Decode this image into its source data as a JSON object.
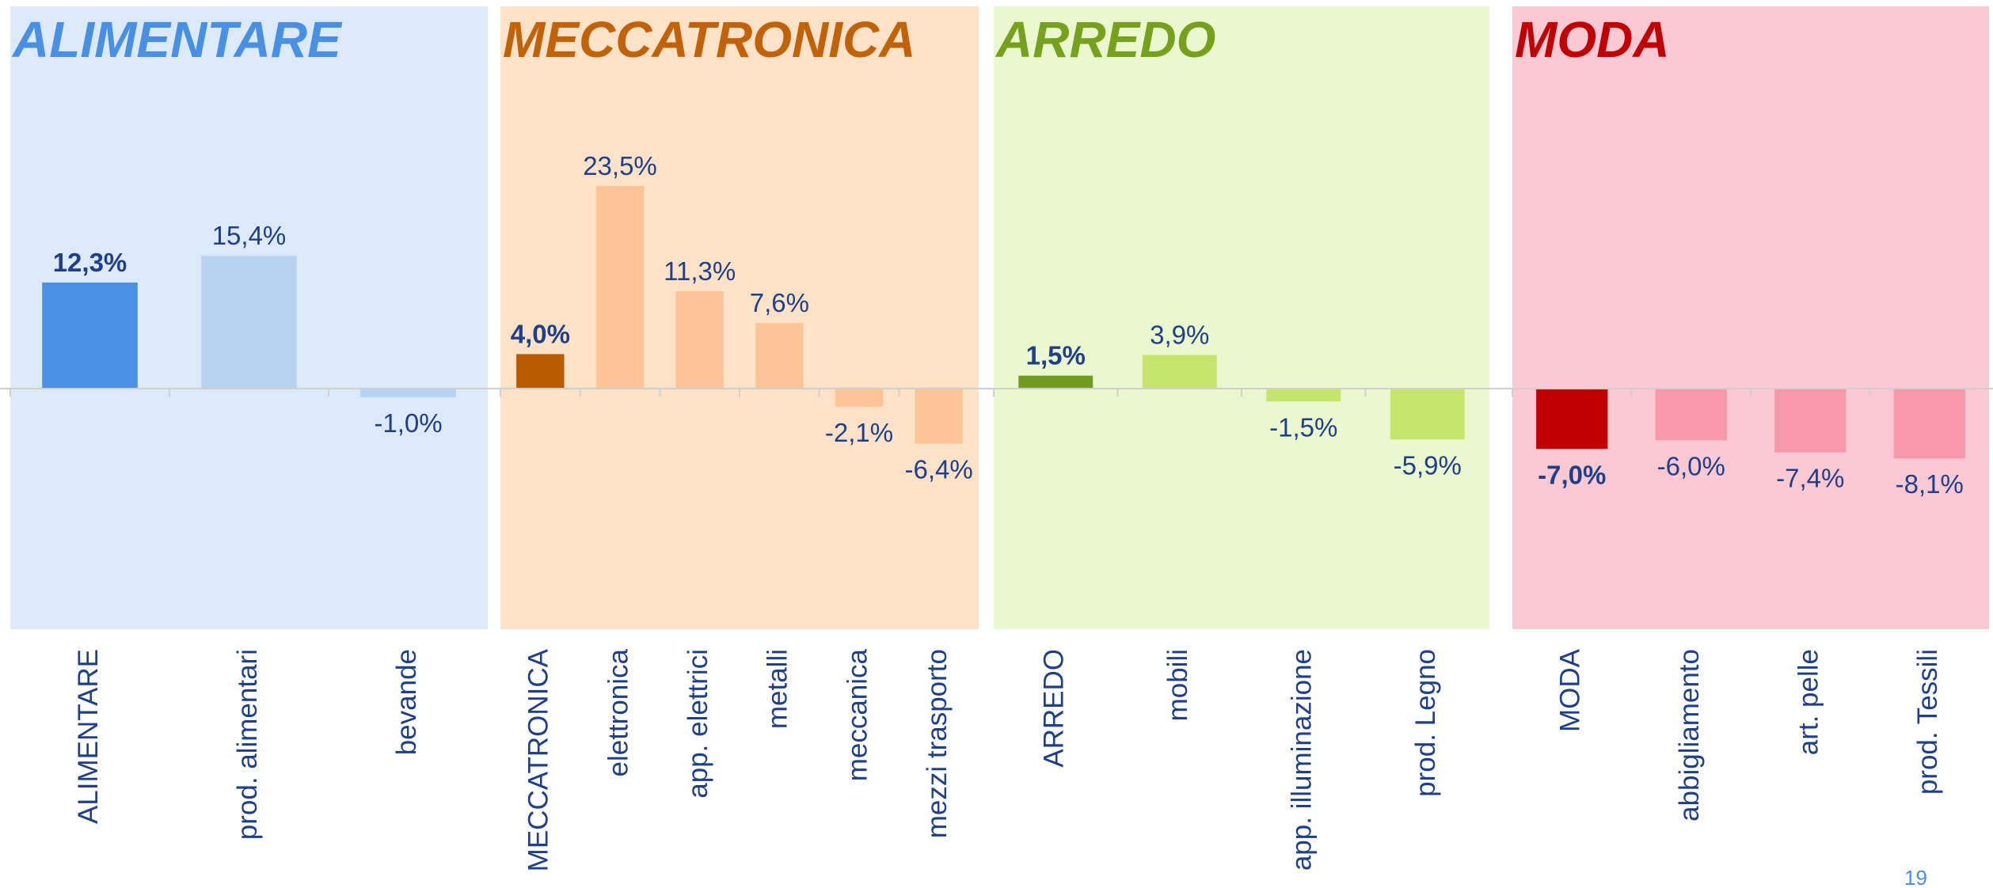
{
  "chart_data": [
    {
      "type": "bar",
      "title": "ALIMENTARE",
      "title_color": "#4a90e2",
      "background": "#dce9f8",
      "categories": [
        "ALIMENTARE",
        "prod. alimentari",
        "bevande"
      ],
      "values": [
        12.3,
        15.4,
        -1.0
      ],
      "value_labels": [
        "12,3%",
        "15,4%",
        "-1,0%"
      ],
      "colors": [
        "#4a90e2",
        "#b8d3f2",
        "#b8d3f2"
      ]
    },
    {
      "type": "bar",
      "title": "MECCATRONICA",
      "title_color": "#c0620a",
      "background": "#fde2c8",
      "categories": [
        "MECCATRONICA",
        "elettronica",
        "app. elettrici",
        "metalli",
        "meccanica",
        "mezzi trasporto"
      ],
      "values": [
        4.0,
        23.5,
        11.3,
        7.6,
        -2.1,
        -6.4
      ],
      "value_labels": [
        "4,0%",
        "23,5%",
        "11,3%",
        "7,6%",
        "-2,1%",
        "-6,4%"
      ],
      "colors": [
        "#b85a00",
        "#fdc597",
        "#fdc597",
        "#fdc597",
        "#fdc597",
        "#fdc597"
      ]
    },
    {
      "type": "bar",
      "title": "ARREDO",
      "title_color": "#77a01e",
      "background": "#ebf7cf",
      "categories": [
        "ARREDO",
        "mobili",
        "app. illuminazione",
        "prod. Legno"
      ],
      "values": [
        1.5,
        3.9,
        -1.5,
        -5.9
      ],
      "value_labels": [
        "1,5%",
        "3,9%",
        "-1,5%",
        "-5,9%"
      ],
      "colors": [
        "#6f9b1f",
        "#c6e56b",
        "#c6e56b",
        "#c6e56b"
      ]
    },
    {
      "type": "bar",
      "title": "MODA",
      "title_color": "#c00000",
      "background": "#fcc8d3",
      "categories": [
        "MODA",
        "abbigliamento",
        "art. pelle",
        "prod. Tessili"
      ],
      "values": [
        -7.0,
        -6.0,
        -7.4,
        -8.1
      ],
      "value_labels": [
        "-7,0%",
        "-6,0%",
        "-7,4%",
        "-8,1%"
      ],
      "colors": [
        "#c00000",
        "#f799aa",
        "#f799aa",
        "#f799aa"
      ]
    }
  ],
  "page_number": "19"
}
